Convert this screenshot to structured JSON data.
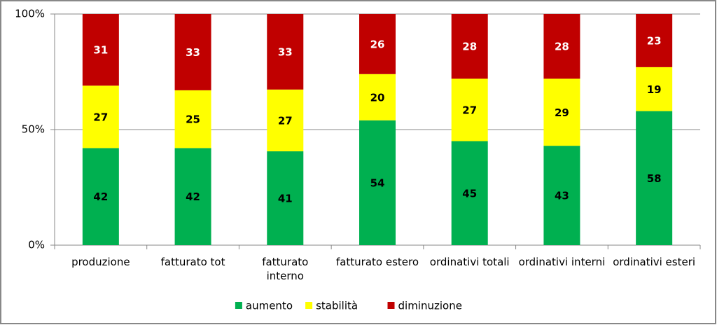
{
  "chart_data": {
    "type": "bar",
    "stack": "percent",
    "categories": [
      "produzione",
      "fatturato tot",
      "fatturato interno",
      "fatturato estero",
      "ordinativi totali",
      "ordinativi interni",
      "ordinativi esteri"
    ],
    "series": [
      {
        "name": "aumento",
        "color": "#00b050",
        "label_color": "#000000",
        "values": [
          42,
          42,
          41,
          54,
          45,
          43,
          58
        ]
      },
      {
        "name": "stabilità",
        "color": "#ffff00",
        "label_color": "#000000",
        "values": [
          27,
          25,
          27,
          20,
          27,
          29,
          19
        ]
      },
      {
        "name": "diminuzione",
        "color": "#c00000",
        "label_color": "#ffffff",
        "values": [
          31,
          33,
          33,
          26,
          28,
          28,
          23
        ]
      }
    ],
    "ylim": [
      0,
      100
    ],
    "yticks": [
      {
        "value": 0,
        "label": "0%"
      },
      {
        "value": 50,
        "label": "50%"
      },
      {
        "value": 100,
        "label": "100%"
      }
    ],
    "grid": true,
    "legend": "bottom"
  }
}
